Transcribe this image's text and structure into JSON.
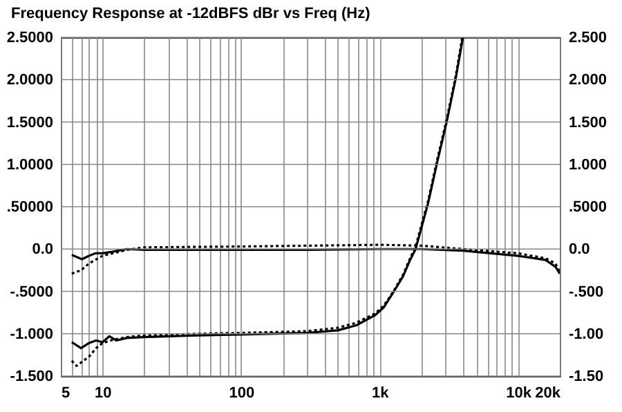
{
  "chart_data": {
    "type": "line",
    "title": "Frequency Response at -12dBFS  dBr vs Freq (Hz)",
    "log": "x",
    "grid": true,
    "legend": false,
    "marker": "none",
    "xlim": [
      5,
      20000
    ],
    "xticks": [
      {
        "value": 5,
        "label": "5"
      },
      {
        "value": 6,
        "label": null
      },
      {
        "value": 7,
        "label": null
      },
      {
        "value": 8,
        "label": null
      },
      {
        "value": 9,
        "label": null
      },
      {
        "value": 10,
        "label": "10"
      },
      {
        "value": 20,
        "label": null
      },
      {
        "value": 30,
        "label": null
      },
      {
        "value": 40,
        "label": null
      },
      {
        "value": 50,
        "label": null
      },
      {
        "value": 60,
        "label": null
      },
      {
        "value": 70,
        "label": null
      },
      {
        "value": 80,
        "label": null
      },
      {
        "value": 90,
        "label": null
      },
      {
        "value": 100,
        "label": "100"
      },
      {
        "value": 200,
        "label": null
      },
      {
        "value": 300,
        "label": null
      },
      {
        "value": 400,
        "label": null
      },
      {
        "value": 500,
        "label": null
      },
      {
        "value": 600,
        "label": null
      },
      {
        "value": 700,
        "label": null
      },
      {
        "value": 800,
        "label": null
      },
      {
        "value": 900,
        "label": null
      },
      {
        "value": 1000,
        "label": "1k"
      },
      {
        "value": 2000,
        "label": null
      },
      {
        "value": 3000,
        "label": null
      },
      {
        "value": 4000,
        "label": null
      },
      {
        "value": 5000,
        "label": null
      },
      {
        "value": 6000,
        "label": null
      },
      {
        "value": 7000,
        "label": null
      },
      {
        "value": 8000,
        "label": null
      },
      {
        "value": 9000,
        "label": null
      },
      {
        "value": 10000,
        "label": "10k"
      },
      {
        "value": 20000,
        "label": "20k"
      }
    ],
    "ylim": [
      -1.5,
      2.5
    ],
    "yticks": [
      {
        "value": -1.5,
        "label": "-1.500"
      },
      {
        "value": -1,
        "label": "-1.000"
      },
      {
        "value": -0.5,
        "label": "-.5000"
      },
      {
        "value": 0,
        "label": "0.0"
      },
      {
        "value": 0.5,
        "label": ".50000"
      },
      {
        "value": 1,
        "label": "1.0000"
      },
      {
        "value": 1.5,
        "label": "1.5000"
      },
      {
        "value": 2,
        "label": "2.0000"
      },
      {
        "value": 2.5,
        "label": "2.5000"
      }
    ],
    "y2lim": [
      -1.5,
      2.5
    ],
    "y2ticks": [
      {
        "value": -1.5,
        "label": "-1.50"
      },
      {
        "value": -1,
        "label": "-1.00"
      },
      {
        "value": -0.5,
        "label": "-.500"
      },
      {
        "value": 0,
        "label": "0.0"
      },
      {
        "value": 0.5,
        "label": ".5000"
      },
      {
        "value": 1,
        "label": "1.000"
      },
      {
        "value": 1.5,
        "label": "1.500"
      },
      {
        "value": 2,
        "label": "2.000"
      },
      {
        "value": 2.5,
        "label": "2.500"
      }
    ],
    "series": [
      {
        "color": "#000000",
        "line_style": "solid",
        "x": [
          6,
          7.1,
          8,
          8.9,
          10,
          12,
          15,
          20,
          50,
          100,
          300,
          1000,
          2000,
          4000,
          10000,
          15800,
          18600,
          20000
        ],
        "values": [
          -0.07,
          -0.12,
          -0.08,
          -0.05,
          -0.05,
          -0.03,
          0,
          -0.01,
          -0.01,
          -0.01,
          -0.01,
          0,
          0,
          -0.02,
          -0.08,
          -0.13,
          -0.21,
          -0.29
        ]
      },
      {
        "color": "#000000",
        "line_style": "dotted",
        "x": [
          6,
          7,
          8,
          10,
          15,
          20,
          100,
          1000,
          2000,
          4000,
          10000,
          15800,
          18600,
          20000
        ],
        "values": [
          -0.29,
          -0.25,
          -0.17,
          -0.08,
          -0.01,
          0.02,
          0.03,
          0.05,
          0.04,
          0,
          -0.05,
          -0.11,
          -0.17,
          -0.27
        ]
      },
      {
        "color": "#000000",
        "line_style": "solid",
        "x": [
          6,
          7,
          8,
          9,
          10,
          11.2,
          12.6,
          15,
          20,
          50,
          100,
          300,
          500,
          680,
          930,
          1070,
          1260,
          1480,
          1660,
          1820,
          2240,
          2610,
          3050,
          3550,
          4000
        ],
        "values": [
          -1.1,
          -1.17,
          -1.11,
          -1.08,
          -1.1,
          -1.03,
          -1.08,
          -1.05,
          -1.04,
          -1.02,
          -1.01,
          -0.99,
          -0.96,
          -0.9,
          -0.78,
          -0.69,
          -0.51,
          -0.32,
          -0.13,
          0,
          0.54,
          1.03,
          1.5,
          2.02,
          2.5
        ]
      },
      {
        "color": "#000000",
        "line_style": "dotted",
        "x": [
          6,
          6.5,
          8,
          9,
          10,
          12,
          15,
          20,
          50,
          100,
          300,
          500,
          680,
          930,
          1070,
          1260,
          1480,
          1660,
          1820,
          2240,
          2610,
          3050,
          3550,
          3950
        ],
        "values": [
          -1.32,
          -1.38,
          -1.27,
          -1.17,
          -1.11,
          -1.07,
          -1.04,
          -1.02,
          -1,
          -0.99,
          -0.97,
          -0.93,
          -0.87,
          -0.76,
          -0.67,
          -0.5,
          -0.3,
          -0.11,
          0.03,
          0.57,
          1.06,
          1.53,
          2.05,
          2.5
        ]
      }
    ]
  }
}
